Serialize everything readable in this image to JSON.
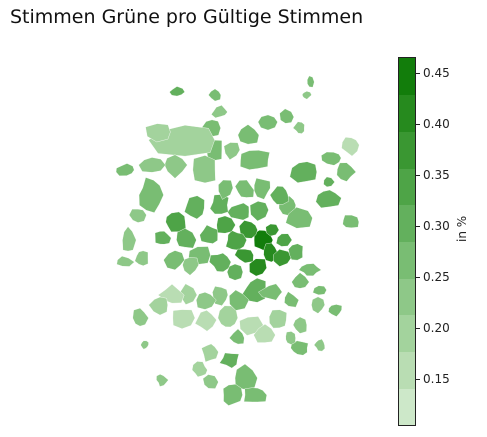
{
  "title": "Stimmen Grüne pro Gültige Stimmen",
  "colorbar": {
    "label": "in %",
    "min": 0.105,
    "max": 0.465,
    "ticks": [
      "0.15",
      "0.20",
      "0.25",
      "0.30",
      "0.35",
      "0.40",
      "0.45"
    ],
    "steps": [
      "#cde8c9",
      "#b9ddb3",
      "#a3d39d",
      "#8ec888",
      "#79bd73",
      "#63b05d",
      "#4ea447",
      "#3a9732",
      "#268a1e",
      "#127d0b"
    ]
  },
  "colors": {
    "frame": "#222222",
    "background": "#ffffff"
  }
}
